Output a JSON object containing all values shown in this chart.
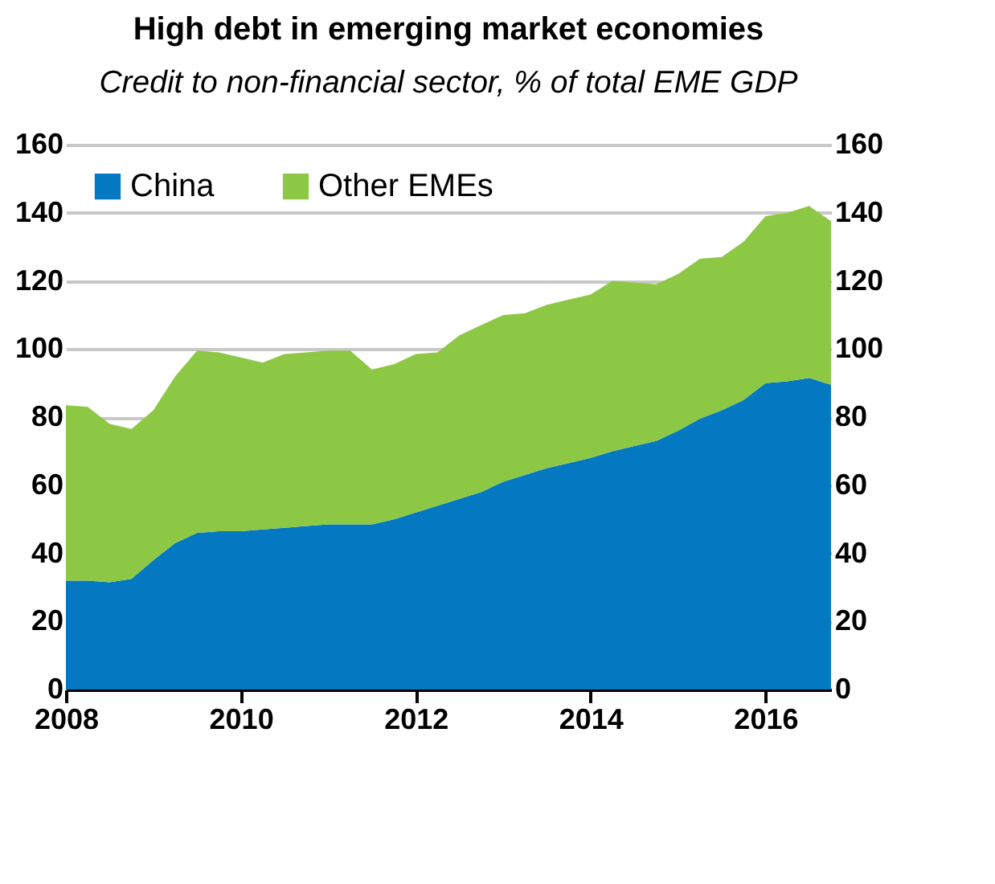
{
  "chart_data": {
    "type": "area",
    "title": "High debt in emerging market economies",
    "subtitle": "Credit to non-financial sector, % of total EME GDP",
    "x": [
      2008,
      2008.25,
      2008.5,
      2008.75,
      2009,
      2009.25,
      2009.5,
      2009.75,
      2010,
      2010.25,
      2010.5,
      2010.75,
      2011,
      2011.25,
      2011.5,
      2011.75,
      2012,
      2012.25,
      2012.5,
      2012.75,
      2013,
      2013.25,
      2013.5,
      2013.75,
      2014,
      2014.25,
      2014.5,
      2014.75,
      2015,
      2015.25,
      2015.5,
      2015.75,
      2016,
      2016.25,
      2016.5,
      2016.75
    ],
    "stacked": true,
    "series": [
      {
        "name": "China",
        "color": "#0479c1",
        "values": [
          32,
          32,
          31.5,
          32.5,
          38,
          43,
          46,
          46.5,
          46.5,
          47,
          47.5,
          48,
          48.5,
          48.5,
          48.5,
          50,
          52,
          54,
          56,
          58,
          61,
          63,
          65,
          66.5,
          68,
          70,
          71.5,
          73,
          76,
          79.5,
          82,
          85,
          90,
          90.5,
          91.5,
          89.5
        ]
      },
      {
        "name": "Other EMEs",
        "color": "#8dc845",
        "values": [
          51.5,
          51,
          46.5,
          44,
          44,
          49,
          53.5,
          52.5,
          51,
          49,
          51,
          51,
          51,
          51,
          45.5,
          45.5,
          46.5,
          45,
          48,
          49,
          49,
          47.5,
          48,
          48,
          48,
          50,
          48,
          46,
          46,
          47,
          45,
          46.5,
          49,
          49.5,
          50.5,
          48
        ]
      }
    ],
    "xlim": [
      2008,
      2016.75
    ],
    "xticks": [
      2008,
      2010,
      2012,
      2014,
      2016
    ],
    "ylim": [
      0,
      160
    ],
    "yticks": [
      0,
      20,
      40,
      60,
      80,
      100,
      120,
      140,
      160
    ],
    "y2lim": [
      0,
      160
    ],
    "y2ticks": [
      0,
      20,
      40,
      60,
      80,
      100,
      120,
      140,
      160
    ],
    "grid": "y",
    "legend": "top left"
  }
}
